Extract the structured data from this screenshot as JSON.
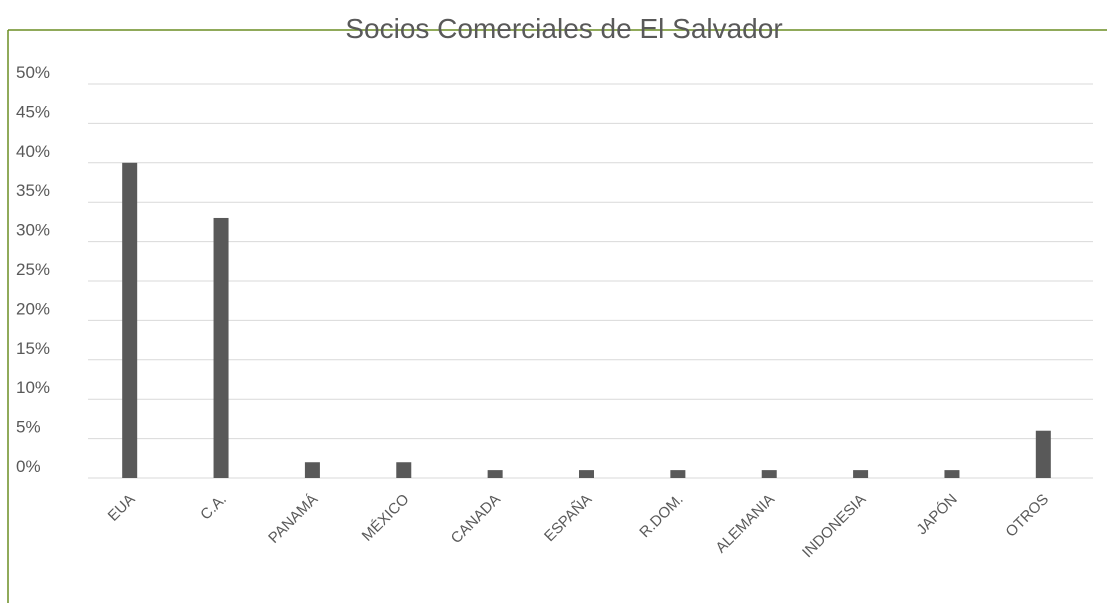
{
  "chart_data": {
    "type": "bar",
    "title": "Socios Comerciales de El Salvador",
    "xlabel": "",
    "ylabel": "",
    "categories": [
      "EUA",
      "C.A.",
      "PANAMÁ",
      "MÉXICO",
      "CANADA",
      "ESPAÑA",
      "R.DOM.",
      "ALEMANIA",
      "INDONESIA",
      "JAPÓN",
      "OTROS"
    ],
    "values": [
      40,
      33,
      2,
      2,
      1,
      1,
      1,
      1,
      1,
      1,
      6
    ],
    "ytick_labels": [
      "0%",
      "5%",
      "10%",
      "15%",
      "20%",
      "25%",
      "30%",
      "35%",
      "40%",
      "45%",
      "50%"
    ],
    "ylim": [
      -5,
      45
    ],
    "grid": true,
    "legend": "none",
    "colors": {
      "bar": "#595959",
      "frame": "#6b8e23",
      "grid": "#d9d9d9",
      "text": "#595959",
      "title": "#595959"
    }
  }
}
